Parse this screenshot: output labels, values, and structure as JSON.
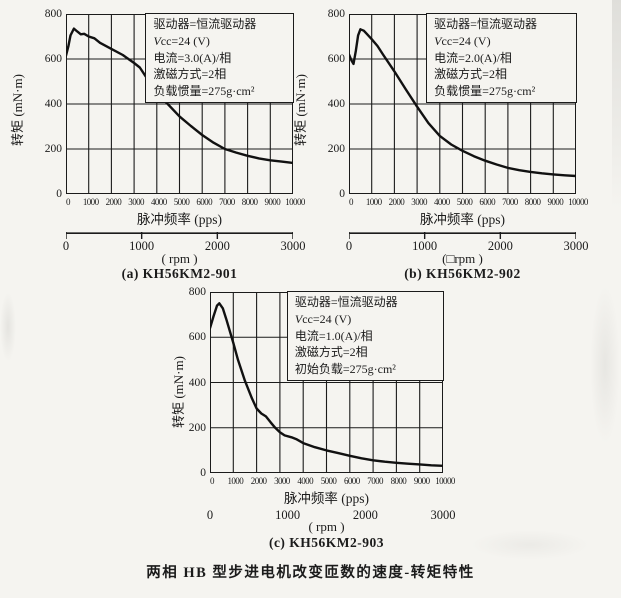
{
  "page": {
    "caption": "两相 HB 型步进电机改变匝数的速度-转矩特性",
    "paper_color": "#f5f4f0",
    "ink_color": "#1b1b1b"
  },
  "chart_data": [
    {
      "type": "line",
      "title": "(a) KH56KM2-901",
      "xlabel": "脉冲频率 (pps)",
      "ylabel": "转矩 (mN·m)",
      "x2label": "( rpm )",
      "xlim": [
        0,
        10000
      ],
      "ylim": [
        0,
        800
      ],
      "x_ticks": [
        0,
        1000,
        2000,
        3000,
        4000,
        5000,
        6000,
        7000,
        8000,
        9000,
        10000
      ],
      "y_ticks": [
        0,
        200,
        400,
        600,
        800
      ],
      "x2_ticks": [
        0,
        1000,
        2000,
        3000
      ],
      "x2_axis_line": true,
      "grid": true,
      "legend_position": "none",
      "annotation": [
        "驱动器=恒流驱动器",
        "Vcc=24 (V)",
        "电流=3.0(A)/相",
        "激磁方式=2相",
        "负载惯量=275g·cm²"
      ],
      "series": [
        {
          "name": "KH56KM2-901",
          "x": [
            0,
            100,
            200,
            350,
            500,
            650,
            800,
            1000,
            1250,
            1500,
            2000,
            2500,
            3000,
            3250,
            3500,
            4000,
            4500,
            5000,
            5500,
            6000,
            6500,
            7000,
            7500,
            8000,
            8500,
            9000,
            9500,
            10000
          ],
          "y": [
            615,
            655,
            705,
            735,
            722,
            710,
            712,
            700,
            692,
            672,
            645,
            618,
            582,
            562,
            525,
            450,
            398,
            345,
            302,
            262,
            228,
            200,
            184,
            170,
            158,
            150,
            144,
            138
          ]
        }
      ]
    },
    {
      "type": "line",
      "title": "(b) KH56KM2-902",
      "xlabel": "脉冲频率 (pps)",
      "ylabel": "转矩 (mN·m)",
      "x2label": "(□rpm )",
      "xlim": [
        0,
        10000
      ],
      "ylim": [
        0,
        800
      ],
      "x_ticks": [
        0,
        1000,
        2000,
        3000,
        4000,
        5000,
        6000,
        7000,
        8000,
        9000,
        10000
      ],
      "y_ticks": [
        0,
        200,
        400,
        600,
        800
      ],
      "x2_ticks": [
        0,
        1000,
        2000,
        3000
      ],
      "x2_axis_line": true,
      "grid": true,
      "legend_position": "none",
      "annotation": [
        "驱动器=恒流驱动器",
        "Vcc=24 (V)",
        "电流=2.0(A)/相",
        "激磁方式=2相",
        "负载惯量=275g·cm²"
      ],
      "series": [
        {
          "name": "KH56KM2-902",
          "x": [
            0,
            100,
            200,
            300,
            400,
            500,
            650,
            800,
            1000,
            1250,
            1500,
            2000,
            2500,
            3000,
            3500,
            4000,
            4500,
            5000,
            5500,
            6000,
            6500,
            7000,
            7500,
            8000,
            8500,
            9000,
            9500,
            10000
          ],
          "y": [
            620,
            595,
            578,
            635,
            705,
            732,
            726,
            710,
            688,
            658,
            620,
            545,
            465,
            388,
            315,
            258,
            220,
            192,
            168,
            148,
            131,
            116,
            106,
            98,
            92,
            87,
            83,
            80
          ]
        }
      ]
    },
    {
      "type": "line",
      "title": "(c) KH56KM2-903",
      "xlabel": "脉冲频率 (pps)",
      "ylabel": "转矩 (mN·m)",
      "x2label": "( rpm )",
      "xlim": [
        0,
        10000
      ],
      "ylim": [
        0,
        800
      ],
      "x_ticks": [
        0,
        1000,
        2000,
        3000,
        4000,
        5000,
        6000,
        7000,
        8000,
        9000,
        10000
      ],
      "y_ticks": [
        0,
        200,
        400,
        600,
        800
      ],
      "x2_ticks": [
        0,
        1000,
        2000,
        3000
      ],
      "x2_axis_line": false,
      "grid": true,
      "legend_position": "none",
      "annotation": [
        "驱动器=恒流驱动器",
        "Vcc=24 (V)",
        "电流=1.0(A)/相",
        "激磁方式=2相",
        "初始负载=275g·cm²"
      ],
      "series": [
        {
          "name": "KH56KM2-903",
          "x": [
            0,
            150,
            300,
            400,
            550,
            700,
            1000,
            1200,
            1500,
            1800,
            2000,
            2200,
            2400,
            2600,
            2800,
            3000,
            3200,
            3500,
            3700,
            4000,
            4500,
            5000,
            5500,
            6000,
            6500,
            7000,
            7500,
            8000,
            8500,
            9000,
            9500,
            10000
          ],
          "y": [
            640,
            692,
            740,
            750,
            728,
            680,
            575,
            500,
            408,
            330,
            285,
            263,
            250,
            224,
            200,
            180,
            166,
            158,
            150,
            132,
            114,
            100,
            88,
            76,
            65,
            56,
            50,
            45,
            41,
            38,
            34,
            32
          ]
        }
      ]
    }
  ]
}
